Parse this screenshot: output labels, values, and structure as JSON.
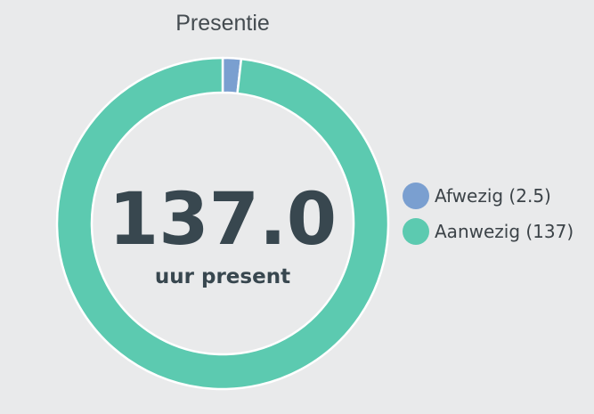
{
  "chart_data": {
    "type": "pie",
    "title": "Presentie",
    "center_value": "137.0",
    "center_label": "uur present",
    "legend_position": "right",
    "slices": [
      {
        "label": "Afwezig (2.5)",
        "value": 2.5,
        "color": "#7a9fd0"
      },
      {
        "label": "Aanwezig (137)",
        "value": 137,
        "color": "#5ccab0"
      }
    ]
  }
}
